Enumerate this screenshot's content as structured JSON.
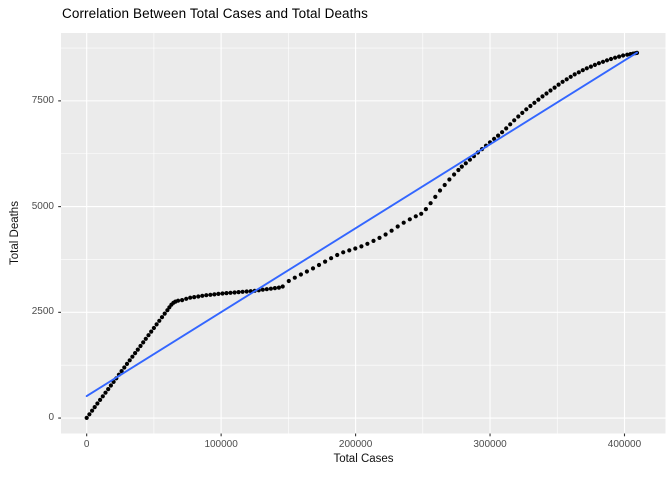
{
  "chart_data": {
    "type": "scatter",
    "title": "Correlation Between Total Cases and Total Deaths",
    "xlabel": "Total Cases",
    "ylabel": "Total Deaths",
    "x_ticks": [
      0,
      100000,
      200000,
      300000,
      400000
    ],
    "x_tick_labels": [
      "0",
      "100000",
      "200000",
      "300000",
      "400000"
    ],
    "y_ticks": [
      0,
      2500,
      5000,
      7500
    ],
    "y_tick_labels": [
      "0",
      "2500",
      "5000",
      "7500"
    ],
    "x_minor_ticks": [
      50000,
      150000,
      250000,
      350000
    ],
    "y_minor_ticks": [
      1250,
      3750,
      6250,
      8750
    ],
    "xlim": [
      -19100,
      430500
    ],
    "ylim": [
      -365,
      9105
    ],
    "grid": "major-and-minor",
    "legend_position": "none",
    "colors": {
      "points": "#000000",
      "smooth_line": "#3366FF",
      "panel_bg": "#EBEBEB",
      "grid": "#FFFFFF",
      "tick_marks": "#333333",
      "axis_text": "#4D4D4D",
      "title_text": "#000000"
    },
    "smooth_line": {
      "method": "lm",
      "x": [
        0,
        409300
      ],
      "y": [
        520,
        8640
      ]
    },
    "points": [
      [
        0,
        5
      ],
      [
        2000,
        90
      ],
      [
        4000,
        175
      ],
      [
        6000,
        260
      ],
      [
        8000,
        345
      ],
      [
        10000,
        430
      ],
      [
        12000,
        515
      ],
      [
        14000,
        600
      ],
      [
        16000,
        685
      ],
      [
        18000,
        770
      ],
      [
        20000,
        855
      ],
      [
        22000,
        940
      ],
      [
        24000,
        1025
      ],
      [
        26000,
        1110
      ],
      [
        28000,
        1195
      ],
      [
        30000,
        1280
      ],
      [
        32000,
        1365
      ],
      [
        34000,
        1450
      ],
      [
        36000,
        1535
      ],
      [
        38000,
        1620
      ],
      [
        40000,
        1705
      ],
      [
        42000,
        1790
      ],
      [
        44000,
        1875
      ],
      [
        46000,
        1960
      ],
      [
        48000,
        2045
      ],
      [
        50000,
        2130
      ],
      [
        52000,
        2215
      ],
      [
        54000,
        2300
      ],
      [
        56000,
        2385
      ],
      [
        58000,
        2470
      ],
      [
        60000,
        2550
      ],
      [
        61500,
        2620
      ],
      [
        63000,
        2680
      ],
      [
        64500,
        2725
      ],
      [
        66000,
        2755
      ],
      [
        68000,
        2775
      ],
      [
        71000,
        2790
      ],
      [
        74000,
        2820
      ],
      [
        77000,
        2845
      ],
      [
        80000,
        2860
      ],
      [
        83000,
        2875
      ],
      [
        86000,
        2890
      ],
      [
        89000,
        2905
      ],
      [
        92000,
        2915
      ],
      [
        95000,
        2925
      ],
      [
        98000,
        2935
      ],
      [
        101000,
        2945
      ],
      [
        104000,
        2955
      ],
      [
        107000,
        2962
      ],
      [
        110000,
        2970
      ],
      [
        113000,
        2978
      ],
      [
        116000,
        2985
      ],
      [
        119000,
        2992
      ],
      [
        122000,
        3000
      ],
      [
        125000,
        3010
      ],
      [
        128000,
        3022
      ],
      [
        131000,
        3035
      ],
      [
        134000,
        3048
      ],
      [
        137000,
        3060
      ],
      [
        140000,
        3072
      ],
      [
        143000,
        3085
      ],
      [
        145800,
        3110
      ],
      [
        150300,
        3240
      ],
      [
        154800,
        3320
      ],
      [
        159300,
        3395
      ],
      [
        163800,
        3465
      ],
      [
        168300,
        3540
      ],
      [
        172800,
        3620
      ],
      [
        177300,
        3700
      ],
      [
        181800,
        3780
      ],
      [
        186300,
        3855
      ],
      [
        190800,
        3920
      ],
      [
        195300,
        3965
      ],
      [
        199800,
        4010
      ],
      [
        204300,
        4060
      ],
      [
        208800,
        4120
      ],
      [
        213300,
        4190
      ],
      [
        217800,
        4260
      ],
      [
        222300,
        4340
      ],
      [
        226800,
        4430
      ],
      [
        231300,
        4530
      ],
      [
        235800,
        4620
      ],
      [
        240300,
        4700
      ],
      [
        244800,
        4770
      ],
      [
        248800,
        4830
      ],
      [
        252300,
        4940
      ],
      [
        255800,
        5080
      ],
      [
        259300,
        5230
      ],
      [
        262800,
        5380
      ],
      [
        266300,
        5510
      ],
      [
        269800,
        5640
      ],
      [
        273300,
        5760
      ],
      [
        276500,
        5865
      ],
      [
        279000,
        5945
      ],
      [
        282000,
        6025
      ],
      [
        285000,
        6110
      ],
      [
        288000,
        6195
      ],
      [
        291000,
        6280
      ],
      [
        294000,
        6360
      ],
      [
        297000,
        6440
      ],
      [
        300000,
        6520
      ],
      [
        303000,
        6600
      ],
      [
        306000,
        6680
      ],
      [
        309000,
        6760
      ],
      [
        312000,
        6850
      ],
      [
        315000,
        6945
      ],
      [
        318000,
        7040
      ],
      [
        321000,
        7130
      ],
      [
        324000,
        7215
      ],
      [
        327000,
        7300
      ],
      [
        330000,
        7380
      ],
      [
        333000,
        7455
      ],
      [
        336000,
        7530
      ],
      [
        339000,
        7605
      ],
      [
        342000,
        7675
      ],
      [
        345000,
        7745
      ],
      [
        348000,
        7815
      ],
      [
        351000,
        7885
      ],
      [
        354000,
        7950
      ],
      [
        357000,
        8010
      ],
      [
        360000,
        8070
      ],
      [
        363000,
        8125
      ],
      [
        366000,
        8175
      ],
      [
        369000,
        8225
      ],
      [
        372000,
        8270
      ],
      [
        375000,
        8310
      ],
      [
        378000,
        8350
      ],
      [
        381000,
        8390
      ],
      [
        384000,
        8425
      ],
      [
        387000,
        8460
      ],
      [
        390000,
        8490
      ],
      [
        393000,
        8520
      ],
      [
        396000,
        8548
      ],
      [
        399000,
        8572
      ],
      [
        402000,
        8592
      ],
      [
        404500,
        8607
      ],
      [
        406500,
        8618
      ],
      [
        408200,
        8627
      ],
      [
        409300,
        8634
      ]
    ]
  }
}
